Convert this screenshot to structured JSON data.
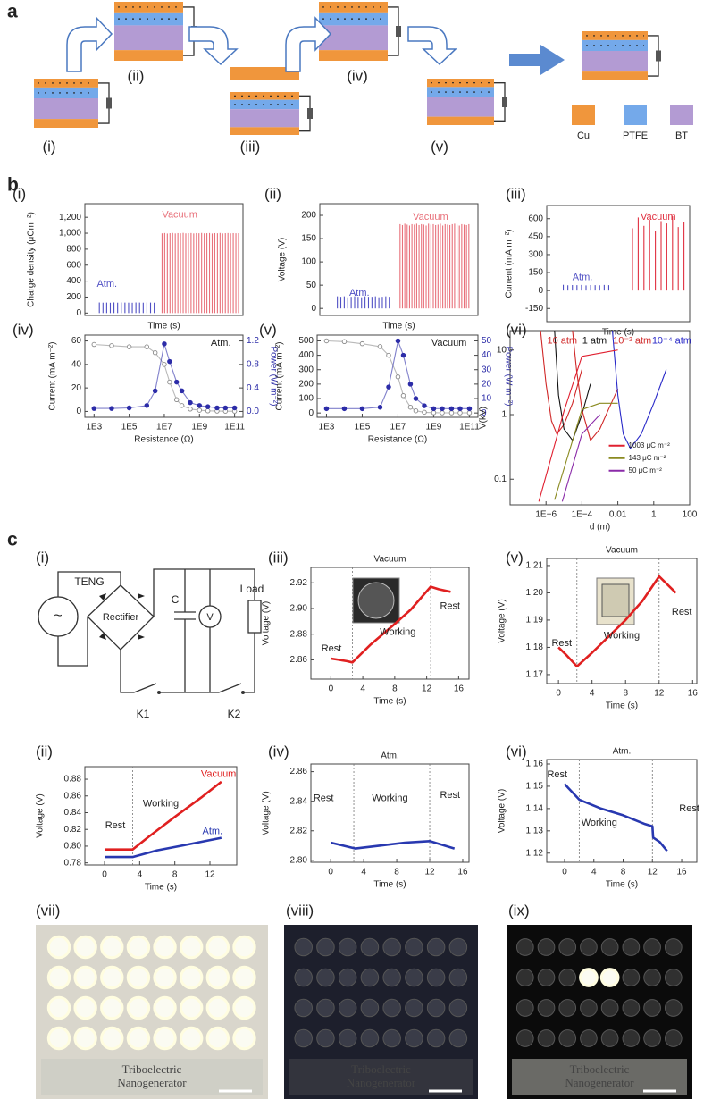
{
  "panel_labels": [
    "a",
    "b",
    "c"
  ],
  "panel_a": {
    "stages": [
      "(i)",
      "(ii)",
      "(iii)",
      "(iv)",
      "(v)"
    ],
    "materials": [
      "Cu",
      "PTFE",
      "BT"
    ]
  },
  "chart_data": [
    {
      "type": "pulse",
      "label": "(i)",
      "xlabel": "Time (s)",
      "ylabel": "Charge density (μCm⁻²)",
      "ylim": [
        -30,
        1370
      ],
      "yticks": [
        0,
        200,
        400,
        600,
        800,
        {
          "value": 1000,
          "label": "1,000"
        },
        {
          "value": 1200,
          "label": "1,200"
        }
      ],
      "series": [
        {
          "name": "Atm.",
          "color": "#4f4fc4",
          "values": [
            132,
            130,
            131,
            129,
            133,
            130,
            132,
            131,
            130,
            129,
            132,
            131,
            130,
            133,
            131,
            130
          ]
        },
        {
          "name": "Vacuum",
          "color": "#e8707a",
          "values": [
            998,
            1002,
            996,
            1000,
            1003,
            997,
            1001,
            999,
            1004,
            998,
            1000,
            1002,
            997,
            1001,
            999,
            1003,
            998,
            1000,
            1002,
            996,
            1001,
            999,
            1003,
            997,
            1000,
            1002,
            998,
            1001,
            999,
            1000
          ]
        }
      ]
    },
    {
      "type": "pulse",
      "label": "(ii)",
      "xlabel": "Time (s)",
      "ylabel": "Voltage (V)",
      "ylim": [
        -15,
        225
      ],
      "yticks": [
        0,
        50,
        100,
        150,
        200
      ],
      "series": [
        {
          "name": "Atm.",
          "color": "#4f4fc4",
          "values": [
            26,
            25,
            26,
            24,
            25,
            26,
            25,
            24,
            26,
            25,
            25,
            26,
            24,
            25,
            26,
            25
          ]
        },
        {
          "name": "Vacuum",
          "color": "#e8707a",
          "values": [
            181,
            179,
            182,
            180,
            178,
            181,
            180,
            182,
            179,
            181,
            180,
            178,
            182,
            180,
            181,
            179,
            180,
            182,
            178,
            181,
            180,
            179,
            181,
            182,
            180,
            178,
            181,
            180,
            179,
            181
          ]
        }
      ]
    },
    {
      "type": "pulse",
      "label": "(iii)",
      "xlabel": "Time (s)",
      "ylabel": "Current (mA m⁻²)",
      "ylim": [
        -260,
        710
      ],
      "yticks": [
        -150,
        0,
        150,
        300,
        450,
        600
      ],
      "series": [
        {
          "name": "Atm.",
          "color": "#4f4fc4",
          "values": [
            48,
            44,
            46,
            45,
            47,
            43,
            46,
            45,
            44,
            47,
            45
          ]
        },
        {
          "name": "Vacuum",
          "color": "#e03040",
          "values": [
            520,
            610,
            540,
            590,
            500,
            580,
            560,
            620,
            530,
            570
          ]
        }
      ]
    },
    {
      "type": "line",
      "label": "(iv)",
      "xlabel": "Resistance (Ω)",
      "ylabel": "Current (mA m⁻²)",
      "y2label": "Power (W m⁻²)",
      "y2color": "#2c2ca8",
      "annotations": [
        "Atm."
      ],
      "xlog": true,
      "xlim": [
        300,
        300000000000
      ],
      "xticks": [
        {
          "value": 1000,
          "label": "1E3"
        },
        {
          "value": 100000,
          "label": "1E5"
        },
        {
          "value": 10000000,
          "label": "1E7"
        },
        {
          "value": 1000000000,
          "label": "1E9"
        },
        {
          "value": 100000000000,
          "label": "1E11"
        }
      ],
      "ylim": [
        -5,
        65
      ],
      "yticks": [
        0,
        20,
        40,
        60
      ],
      "y2lim": [
        -0.1,
        1.3
      ],
      "y2ticks": [
        {
          "value": 0,
          "label": "0.0"
        },
        0.4,
        0.8,
        1.2
      ],
      "x": [
        1000,
        10000,
        100000,
        1000000,
        3000000,
        10000000,
        20000000,
        50000000,
        100000000,
        300000000,
        1000000000,
        3000000000,
        10000000000,
        30000000000,
        100000000000
      ],
      "series": [
        {
          "name": "Current",
          "color": "#8a8a8a",
          "marker": "open",
          "values": [
            57,
            56,
            55,
            55,
            50,
            40,
            25,
            10,
            5,
            2,
            1,
            0.5,
            0.3,
            0.2,
            0.2
          ]
        },
        {
          "name": "Power",
          "color": "#2c2ca8",
          "marker": "filled",
          "axis": "y2",
          "values": [
            0.05,
            0.05,
            0.06,
            0.1,
            0.35,
            1.15,
            0.85,
            0.5,
            0.35,
            0.15,
            0.1,
            0.08,
            0.06,
            0.06,
            0.06
          ]
        }
      ]
    },
    {
      "type": "line",
      "label": "(v)",
      "xlabel": "Resistance (Ω)",
      "ylabel": "Current (mA m⁻²)",
      "y2label": "Power (W m⁻²)",
      "y2color": "#2c2ca8",
      "annotations": [
        "Vacuum"
      ],
      "xlog": true,
      "xlim": [
        300,
        300000000000
      ],
      "xticks": [
        {
          "value": 1000,
          "label": "1E3"
        },
        {
          "value": 100000,
          "label": "1E5"
        },
        {
          "value": 10000000,
          "label": "1E7"
        },
        {
          "value": 1000000000,
          "label": "1E9"
        },
        {
          "value": 100000000000,
          "label": "1E11"
        }
      ],
      "ylim": [
        -30,
        540
      ],
      "yticks": [
        0,
        100,
        200,
        300,
        400,
        500
      ],
      "y2lim": [
        -3,
        54
      ],
      "y2ticks": [
        0,
        10,
        20,
        30,
        40,
        50
      ],
      "x": [
        1000,
        10000,
        100000,
        1000000,
        3000000,
        10000000,
        20000000,
        50000000,
        100000000,
        300000000,
        1000000000,
        3000000000,
        10000000000,
        30000000000,
        100000000000
      ],
      "series": [
        {
          "name": "Current",
          "color": "#8a8a8a",
          "marker": "open",
          "values": [
            500,
            495,
            480,
            460,
            400,
            250,
            120,
            40,
            15,
            5,
            2,
            1,
            1,
            1,
            1
          ]
        },
        {
          "name": "Power",
          "color": "#2c2ca8",
          "marker": "filled",
          "axis": "y2",
          "values": [
            3,
            3,
            3,
            4,
            18,
            50,
            40,
            20,
            10,
            5,
            3,
            3,
            3,
            3,
            3
          ]
        }
      ]
    },
    {
      "type": "line",
      "label": "(vi)",
      "xlabel": "d (m)",
      "ylabel": "V(kV)",
      "xlog": true,
      "ylog": true,
      "xlim": [
        1e-08,
        100
      ],
      "xticks": [
        {
          "value": 1e-06,
          "label": "1E−6"
        },
        {
          "value": 0.0001,
          "label": "1E−4"
        },
        0.01,
        1,
        100
      ],
      "ylim": [
        0.04,
        20
      ],
      "yticks": [
        0.1,
        1,
        10
      ],
      "series": [
        {
          "name": "10 atm",
          "color": "#d02828",
          "x": [
            5e-07,
            1e-06,
            2e-06,
            4e-06,
            1e-05,
            3e-05,
            0.0001
          ],
          "values": [
            20,
            3,
            0.8,
            0.5,
            0.7,
            1.5,
            5
          ]
        },
        {
          "name": "1 atm",
          "color": "#111111",
          "x": [
            3e-06,
            5e-06,
            1e-05,
            3e-05,
            0.0001,
            0.0003
          ],
          "values": [
            20,
            2,
            0.6,
            0.4,
            1,
            3
          ]
        },
        {
          "name": "10⁻² atm",
          "color": "#d02828",
          "x": [
            3e-05,
            5e-05,
            0.0001,
            0.0003,
            0.001,
            0.003,
            0.01
          ],
          "values": [
            20,
            5,
            1.2,
            0.4,
            0.6,
            1.2,
            2.5
          ]
        },
        {
          "name": "10⁻⁴ atm",
          "color": "#2828c8",
          "x": [
            0.005,
            0.01,
            0.02,
            0.05,
            0.2,
            1,
            5
          ],
          "values": [
            20,
            2,
            0.5,
            0.3,
            0.5,
            1.5,
            5
          ]
        }
      ],
      "legend_series": [
        {
          "name": "1003 μC m⁻²",
          "color": "#e02030",
          "x": [
            4e-07,
            1e-05,
            0.0001,
            0.01
          ],
          "values": [
            0.045,
            1.13,
            8,
            10
          ]
        },
        {
          "name": "143 μC m⁻²",
          "color": "#8a8a20",
          "x": [
            3e-06,
            0.0001,
            0.001,
            0.01
          ],
          "values": [
            0.048,
            1.2,
            1.5,
            1.5
          ]
        },
        {
          "name": "50 μC m⁻²",
          "color": "#8a2aa8",
          "x": [
            8e-06,
            0.0001,
            0.001
          ],
          "values": [
            0.045,
            0.5,
            1
          ]
        }
      ]
    },
    {
      "type": "line",
      "label": "(iii)",
      "title": "Vacuum",
      "xlabel": "Time (s)",
      "ylabel": "Voltage (V)",
      "annotations": [
        "Rest",
        "Working",
        "Rest"
      ],
      "vlines": [
        2.7,
        12.5
      ],
      "xlim": [
        -2.5,
        17.3
      ],
      "xticks": [
        0,
        4,
        8,
        12,
        16
      ],
      "ylim": [
        2.845,
        2.932
      ],
      "yticks": [
        2.86,
        2.88,
        {
          "value": 2.9,
          "label": "2.90"
        },
        2.92
      ],
      "series": [
        {
          "name": "Vacuum",
          "color": "#e02020",
          "x": [
            0,
            1,
            2,
            2.7,
            5,
            8,
            10,
            12.5,
            13.5,
            15
          ],
          "values": [
            2.861,
            2.86,
            2.859,
            2.858,
            2.872,
            2.888,
            2.899,
            2.917,
            2.915,
            2.913
          ]
        }
      ]
    },
    {
      "type": "line",
      "label": "(v)",
      "title": "Vacuum",
      "xlabel": "Time (s)",
      "ylabel": "Voltage (V)",
      "annotations": [
        "Rest",
        "Working",
        "Rest"
      ],
      "vlines": [
        2.2,
        12
      ],
      "xlim": [
        -1.4,
        16.5
      ],
      "xticks": [
        0,
        4,
        8,
        12,
        16
      ],
      "ylim": [
        1.1667,
        1.2126
      ],
      "yticks": [
        1.17,
        1.18,
        1.19,
        {
          "value": 1.2,
          "label": "1.20"
        },
        1.21
      ],
      "series": [
        {
          "name": "Vacuum",
          "color": "#e02020",
          "x": [
            0,
            1,
            2.2,
            4,
            6,
            8,
            10,
            12,
            13,
            14
          ],
          "values": [
            1.18,
            1.177,
            1.173,
            1.178,
            1.184,
            1.19,
            1.197,
            1.206,
            1.203,
            1.2
          ]
        }
      ]
    },
    {
      "type": "line",
      "label": "(ii)",
      "xlabel": "Time (s)",
      "ylabel": "Voltage (V)",
      "annotations": [
        "Rest",
        "Working"
      ],
      "vlines": [
        3.2
      ],
      "xlim": [
        -2.24,
        15.05
      ],
      "xticks": [
        0,
        4,
        8,
        12
      ],
      "ylim": [
        0.7775,
        0.895
      ],
      "yticks": [
        0.78,
        {
          "value": 0.8,
          "label": "0.80"
        },
        0.82,
        0.84,
        0.86,
        0.88
      ],
      "series": [
        {
          "name": "Vacuum",
          "color": "#e02020",
          "x": [
            0,
            3.2,
            5,
            8,
            11,
            13.3
          ],
          "values": [
            0.796,
            0.796,
            0.811,
            0.835,
            0.858,
            0.877
          ]
        },
        {
          "name": "Atm.",
          "color": "#2838b0",
          "x": [
            0,
            3.2,
            6,
            9,
            13.3
          ],
          "values": [
            0.787,
            0.787,
            0.795,
            0.801,
            0.81
          ]
        }
      ]
    },
    {
      "type": "line",
      "label": "(iv)",
      "title": "Atm.",
      "xlabel": "Time (s)",
      "ylabel": "Voltage (V)",
      "annotations": [
        "Rest",
        "Working",
        "Rest"
      ],
      "vlines": [
        2.8,
        12
      ],
      "xlim": [
        -2.4,
        16.76
      ],
      "xticks": [
        0,
        4,
        8,
        12,
        16
      ],
      "ylim": [
        2.7987,
        2.8652
      ],
      "yticks": [
        {
          "value": 2.8,
          "label": "2.80"
        },
        2.82,
        2.84,
        2.86
      ],
      "series": [
        {
          "name": "Atm.",
          "color": "#2838b0",
          "x": [
            0,
            3,
            6,
            9,
            12,
            15
          ],
          "values": [
            2.812,
            2.808,
            2.81,
            2.812,
            2.813,
            2.808
          ]
        }
      ]
    },
    {
      "type": "line",
      "label": "(vi)",
      "title": "Atm.",
      "xlabel": "Time (s)",
      "ylabel": "Voltage (V)",
      "annotations": [
        "Rest",
        "Working",
        "Rest"
      ],
      "vlines": [
        2,
        12
      ],
      "xlim": [
        -2.44,
        18.07
      ],
      "xticks": [
        0,
        4,
        8,
        12,
        16
      ],
      "ylim": [
        1.1159,
        1.162
      ],
      "yticks": [
        1.12,
        1.13,
        1.14,
        1.15,
        1.16
      ],
      "series": [
        {
          "name": "Atm.",
          "color": "#2838b0",
          "x": [
            0,
            2,
            5,
            8,
            11,
            12,
            12.1,
            13,
            14
          ],
          "values": [
            1.151,
            1.144,
            1.14,
            1.137,
            1.133,
            1.132,
            1.127,
            1.125,
            1.121
          ]
        }
      ]
    }
  ],
  "circuit": {
    "label": "(i)",
    "source": "TENG",
    "symbol": "~",
    "rectifier": "Rectifier",
    "capacitor": "C",
    "voltmeter": "V",
    "load": "Load",
    "switch1": "K1",
    "switch2": "K2"
  },
  "photos": [
    {
      "label": "(vii)",
      "text": [
        "Triboelectric",
        "Nanogenerator"
      ]
    },
    {
      "label": "(viii)",
      "text": [
        "Triboelectric",
        "Nanogenerator"
      ]
    },
    {
      "label": "(ix)",
      "text": [
        "Triboelectric",
        "Nanogenerator"
      ]
    }
  ]
}
